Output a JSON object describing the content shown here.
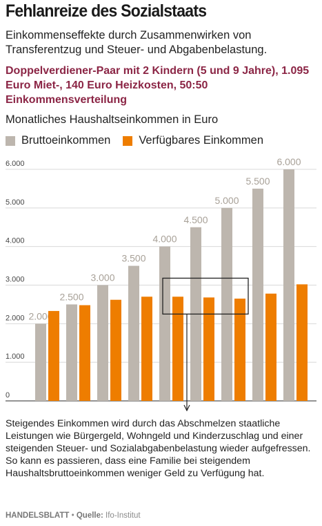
{
  "title": "Fehlanreize des Sozialstaats",
  "subtitle": "Einkommenseffekte durch Zusammenwirken von Transferentzug und Steuer- und Abgabenbelastung.",
  "highlight": "Doppelverdiener-Paar mit 2 Kindern (5 und 9 Jahre), 1.095 Euro Miet-, 140 Euro Heizkosten, 50:50 Einkommensverteilung",
  "annotation": "Steigendes Einkommen wird durch das Abschmelzen staatliche Leistungen wie Bürgergeld, Wohngeld und Kinderzuschlag und einer steigenden Steuer- und Sozialabgabenbelastung wieder aufgefressen. So kann es passieren, dass eine Familie bei steigendem Haushaltsbruttoeinkommen weniger Geld zu Verfügung hat.",
  "footer": {
    "publisher": "HANDELSBLATT",
    "source_label": "Quelle:",
    "source": "Ifo-Institut"
  },
  "colors": {
    "gross": "#bdb6ae",
    "net": "#ee7d00",
    "gridline": "#d8d8d8",
    "highlight": "#8b2545"
  },
  "chart_data": {
    "type": "bar",
    "ylabel": "Monatliches Haushaltseinkommen in Euro",
    "ylim": [
      0,
      6000
    ],
    "yticks": [
      "0",
      "1.000",
      "2.000",
      "3.000",
      "4.000",
      "5.000",
      "6.000"
    ],
    "ytick_values": [
      0,
      1000,
      2000,
      3000,
      4000,
      5000,
      6000
    ],
    "grid": true,
    "legend_position": "top-left",
    "series": [
      {
        "name": "Bruttoeinkommen",
        "values": [
          2000,
          2500,
          3000,
          3500,
          4000,
          4500,
          5000,
          5500,
          6000
        ],
        "labels": [
          "2.000",
          "2.500",
          "3.000",
          "3.500",
          "4.000",
          "4.500",
          "5.000",
          "5.500",
          "6.000"
        ]
      },
      {
        "name": "Verfügbares Einkommen",
        "values": [
          2330,
          2480,
          2620,
          2700,
          2700,
          2680,
          2650,
          2780,
          3020
        ]
      }
    ],
    "highlight_range": {
      "from_index": 4,
      "to_index": 6,
      "y_from": 2250,
      "y_to": 3180
    }
  }
}
